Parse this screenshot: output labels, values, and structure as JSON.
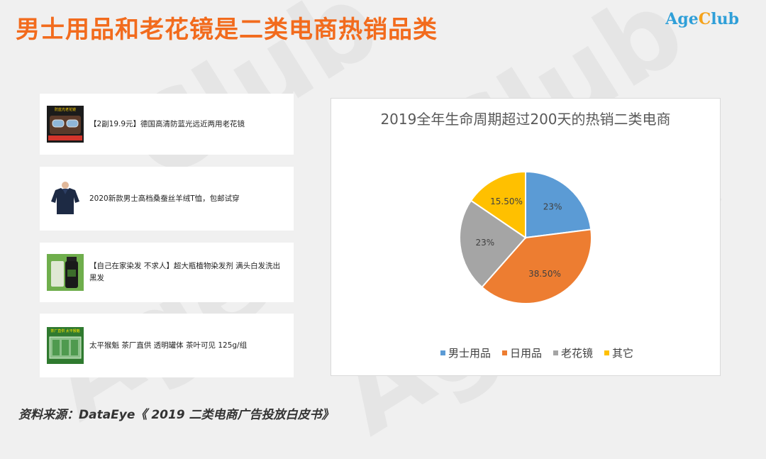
{
  "header": {
    "title": "男士用品和老花镜是二类电商热销品类",
    "logo_age": "Age",
    "logo_c": "C",
    "logo_lub": "lub"
  },
  "products": [
    {
      "text": "【2副19.9元】德国高清防蓝光远近两用老花镜",
      "thumb_text": "防蓝光老花镜"
    },
    {
      "text": "2020新款男士高档桑蚕丝羊绒T恤，包邮试穿"
    },
    {
      "text": "【自己在家染发 不求人】超大瓶植物染发剂 满头白发洗出黑发"
    },
    {
      "text": "太平猴魁 茶厂直供 透明罐体 茶叶可见 125g/组",
      "thumb_text": "茶厂直供 太平猴魁"
    }
  ],
  "chart_data": {
    "type": "pie",
    "title": "2019全年生命周期超过200天的热销二类电商",
    "slices": [
      {
        "name": "男士用品",
        "value": 23,
        "label": "23%",
        "color": "#5b9bd5"
      },
      {
        "name": "日用品",
        "value": 38.5,
        "label": "38.50%",
        "color": "#ed7d31"
      },
      {
        "name": "老花镜",
        "value": 23,
        "label": "23%",
        "color": "#a5a5a5"
      },
      {
        "name": "其它",
        "value": 15.5,
        "label": "15.50%",
        "color": "#ffc000"
      }
    ],
    "legend_position": "bottom"
  },
  "footer": {
    "source": "资料来源：DataEye《 2019 二类电商广告投放白皮书》"
  }
}
